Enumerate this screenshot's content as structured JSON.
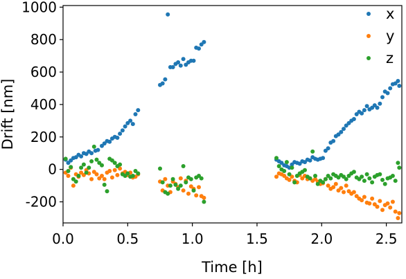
{
  "chart_data": {
    "type": "scatter",
    "xlabel": "Time [h]",
    "ylabel": "Drift [nm]",
    "xlim": [
      0,
      2.62
    ],
    "ylim": [
      -330,
      1010
    ],
    "xticks": [
      0.0,
      0.5,
      1.0,
      1.5,
      2.0,
      2.5
    ],
    "xtick_labels": [
      "0.0",
      "0.5",
      "1.0",
      "1.5",
      "2.0",
      "2.5"
    ],
    "yticks": [
      -200,
      0,
      200,
      400,
      600,
      800,
      1000
    ],
    "ytick_labels": [
      "-200",
      "0",
      "200",
      "400",
      "600",
      "800",
      "1000"
    ],
    "legend_position": "top-right",
    "grid": false,
    "series": [
      {
        "name": "x",
        "color": "#1f77b4",
        "points": [
          [
            0.02,
            60
          ],
          [
            0.04,
            40
          ],
          [
            0.06,
            55
          ],
          [
            0.08,
            70
          ],
          [
            0.1,
            75
          ],
          [
            0.12,
            90
          ],
          [
            0.14,
            80
          ],
          [
            0.16,
            100
          ],
          [
            0.18,
            95
          ],
          [
            0.2,
            110
          ],
          [
            0.22,
            100
          ],
          [
            0.25,
            115
          ],
          [
            0.27,
            120
          ],
          [
            0.3,
            145
          ],
          [
            0.32,
            160
          ],
          [
            0.34,
            175
          ],
          [
            0.36,
            170
          ],
          [
            0.38,
            190
          ],
          [
            0.4,
            200
          ],
          [
            0.42,
            195
          ],
          [
            0.44,
            220
          ],
          [
            0.46,
            240
          ],
          [
            0.48,
            265
          ],
          [
            0.5,
            285
          ],
          [
            0.52,
            300
          ],
          [
            0.54,
            280
          ],
          [
            0.56,
            340
          ],
          [
            0.58,
            365
          ],
          [
            0.75,
            520
          ],
          [
            0.77,
            530
          ],
          [
            0.79,
            555
          ],
          [
            0.81,
            955
          ],
          [
            0.83,
            630
          ],
          [
            0.85,
            630
          ],
          [
            0.87,
            650
          ],
          [
            0.89,
            660
          ],
          [
            0.91,
            640
          ],
          [
            0.93,
            680
          ],
          [
            0.95,
            645
          ],
          [
            0.97,
            660
          ],
          [
            0.99,
            670
          ],
          [
            1.01,
            670
          ],
          [
            1.03,
            750
          ],
          [
            1.05,
            745
          ],
          [
            1.07,
            770
          ],
          [
            1.09,
            785
          ],
          [
            1.65,
            60
          ],
          [
            1.67,
            50
          ],
          [
            1.69,
            40
          ],
          [
            1.71,
            25
          ],
          [
            1.73,
            20
          ],
          [
            1.75,
            10
          ],
          [
            1.77,
            30
          ],
          [
            1.79,
            45
          ],
          [
            1.81,
            40
          ],
          [
            1.83,
            35
          ],
          [
            1.85,
            50
          ],
          [
            1.87,
            45
          ],
          [
            1.89,
            60
          ],
          [
            1.91,
            55
          ],
          [
            1.93,
            75
          ],
          [
            1.95,
            65
          ],
          [
            1.97,
            60
          ],
          [
            1.99,
            65
          ],
          [
            2.01,
            70
          ],
          [
            2.03,
            115
          ],
          [
            2.05,
            130
          ],
          [
            2.07,
            165
          ],
          [
            2.09,
            175
          ],
          [
            2.11,
            205
          ],
          [
            2.13,
            215
          ],
          [
            2.15,
            230
          ],
          [
            2.17,
            250
          ],
          [
            2.19,
            270
          ],
          [
            2.21,
            285
          ],
          [
            2.23,
            300
          ],
          [
            2.25,
            310
          ],
          [
            2.27,
            340
          ],
          [
            2.29,
            355
          ],
          [
            2.31,
            345
          ],
          [
            2.33,
            365
          ],
          [
            2.35,
            390
          ],
          [
            2.37,
            370
          ],
          [
            2.39,
            380
          ],
          [
            2.41,
            395
          ],
          [
            2.43,
            380
          ],
          [
            2.45,
            405
          ],
          [
            2.47,
            445
          ],
          [
            2.49,
            480
          ],
          [
            2.51,
            470
          ],
          [
            2.53,
            500
          ],
          [
            2.55,
            525
          ],
          [
            2.57,
            530
          ],
          [
            2.59,
            545
          ],
          [
            2.6,
            515
          ]
        ]
      },
      {
        "name": "y",
        "color": "#ff7f0e",
        "points": [
          [
            0.02,
            -20
          ],
          [
            0.04,
            -40
          ],
          [
            0.06,
            10
          ],
          [
            0.08,
            -100
          ],
          [
            0.1,
            -30
          ],
          [
            0.12,
            -45
          ],
          [
            0.14,
            -20
          ],
          [
            0.16,
            -35
          ],
          [
            0.18,
            -5
          ],
          [
            0.2,
            -25
          ],
          [
            0.22,
            -60
          ],
          [
            0.24,
            -15
          ],
          [
            0.26,
            -30
          ],
          [
            0.28,
            -55
          ],
          [
            0.3,
            -40
          ],
          [
            0.32,
            -60
          ],
          [
            0.34,
            -20
          ],
          [
            0.36,
            -10
          ],
          [
            0.38,
            -50
          ],
          [
            0.4,
            -5
          ],
          [
            0.42,
            -35
          ],
          [
            0.44,
            5
          ],
          [
            0.46,
            -25
          ],
          [
            0.48,
            -15
          ],
          [
            0.5,
            -35
          ],
          [
            0.52,
            -20
          ],
          [
            0.54,
            -50
          ],
          [
            0.56,
            -45
          ],
          [
            0.58,
            -30
          ],
          [
            0.75,
            -75
          ],
          [
            0.77,
            -130
          ],
          [
            0.79,
            -60
          ],
          [
            0.81,
            -100
          ],
          [
            0.83,
            -140
          ],
          [
            0.85,
            -75
          ],
          [
            0.87,
            -90
          ],
          [
            0.89,
            -110
          ],
          [
            0.91,
            -55
          ],
          [
            0.93,
            -130
          ],
          [
            0.95,
            -70
          ],
          [
            0.97,
            -150
          ],
          [
            0.99,
            -105
          ],
          [
            1.01,
            -120
          ],
          [
            1.03,
            -160
          ],
          [
            1.05,
            -110
          ],
          [
            1.07,
            -165
          ],
          [
            1.09,
            -175
          ],
          [
            1.65,
            -45
          ],
          [
            1.67,
            -25
          ],
          [
            1.69,
            -30
          ],
          [
            1.71,
            -40
          ],
          [
            1.73,
            -55
          ],
          [
            1.75,
            -65
          ],
          [
            1.77,
            -45
          ],
          [
            1.79,
            -70
          ],
          [
            1.81,
            -80
          ],
          [
            1.83,
            -35
          ],
          [
            1.85,
            -55
          ],
          [
            1.87,
            -40
          ],
          [
            1.89,
            -60
          ],
          [
            1.91,
            -55
          ],
          [
            1.93,
            -70
          ],
          [
            1.95,
            -60
          ],
          [
            1.97,
            -75
          ],
          [
            1.99,
            -90
          ],
          [
            2.01,
            -85
          ],
          [
            2.03,
            -60
          ],
          [
            2.05,
            -100
          ],
          [
            2.07,
            -120
          ],
          [
            2.09,
            -110
          ],
          [
            2.11,
            -90
          ],
          [
            2.13,
            -130
          ],
          [
            2.15,
            -115
          ],
          [
            2.17,
            -140
          ],
          [
            2.19,
            -100
          ],
          [
            2.21,
            -135
          ],
          [
            2.23,
            -150
          ],
          [
            2.25,
            -140
          ],
          [
            2.27,
            -165
          ],
          [
            2.29,
            -180
          ],
          [
            2.31,
            -190
          ],
          [
            2.33,
            -170
          ],
          [
            2.35,
            -205
          ],
          [
            2.37,
            -210
          ],
          [
            2.39,
            -180
          ],
          [
            2.41,
            -215
          ],
          [
            2.43,
            -230
          ],
          [
            2.45,
            -195
          ],
          [
            2.47,
            -250
          ],
          [
            2.49,
            -220
          ],
          [
            2.51,
            -210
          ],
          [
            2.53,
            -235
          ],
          [
            2.55,
            -200
          ],
          [
            2.57,
            -260
          ],
          [
            2.59,
            -300
          ],
          [
            2.6,
            -270
          ]
        ]
      },
      {
        "name": "z",
        "color": "#2ca02c",
        "points": [
          [
            0.02,
            65
          ],
          [
            0.04,
            -10
          ],
          [
            0.06,
            15
          ],
          [
            0.08,
            -60
          ],
          [
            0.1,
            -75
          ],
          [
            0.12,
            -40
          ],
          [
            0.14,
            10
          ],
          [
            0.16,
            30
          ],
          [
            0.18,
            -20
          ],
          [
            0.2,
            10
          ],
          [
            0.22,
            50
          ],
          [
            0.24,
            140
          ],
          [
            0.26,
            60
          ],
          [
            0.28,
            40
          ],
          [
            0.3,
            25
          ],
          [
            0.32,
            -95
          ],
          [
            0.34,
            -135
          ],
          [
            0.36,
            65
          ],
          [
            0.38,
            55
          ],
          [
            0.4,
            40
          ],
          [
            0.42,
            20
          ],
          [
            0.44,
            30
          ],
          [
            0.46,
            -30
          ],
          [
            0.48,
            -40
          ],
          [
            0.5,
            -25
          ],
          [
            0.52,
            -45
          ],
          [
            0.54,
            -40
          ],
          [
            0.56,
            -10
          ],
          [
            0.58,
            -25
          ],
          [
            0.75,
            5
          ],
          [
            0.77,
            -80
          ],
          [
            0.79,
            -140
          ],
          [
            0.81,
            -150
          ],
          [
            0.83,
            -100
          ],
          [
            0.85,
            -60
          ],
          [
            0.87,
            -95
          ],
          [
            0.89,
            -120
          ],
          [
            0.91,
            -100
          ],
          [
            0.93,
            20
          ],
          [
            0.95,
            -80
          ],
          [
            0.97,
            -50
          ],
          [
            0.99,
            -60
          ],
          [
            1.01,
            -130
          ],
          [
            1.03,
            -50
          ],
          [
            1.05,
            -40
          ],
          [
            1.07,
            -55
          ],
          [
            1.09,
            -200
          ],
          [
            1.65,
            70
          ],
          [
            1.67,
            20
          ],
          [
            1.69,
            0
          ],
          [
            1.71,
            -10
          ],
          [
            1.73,
            45
          ],
          [
            1.75,
            -30
          ],
          [
            1.77,
            10
          ],
          [
            1.79,
            -80
          ],
          [
            1.81,
            -40
          ],
          [
            1.83,
            -25
          ],
          [
            1.85,
            -15
          ],
          [
            1.87,
            -5
          ],
          [
            1.89,
            -45
          ],
          [
            1.91,
            -55
          ],
          [
            1.93,
            110
          ],
          [
            1.95,
            -40
          ],
          [
            1.97,
            -90
          ],
          [
            1.99,
            -70
          ],
          [
            2.01,
            -80
          ],
          [
            2.03,
            -60
          ],
          [
            2.05,
            -40
          ],
          [
            2.07,
            -55
          ],
          [
            2.09,
            -30
          ],
          [
            2.11,
            -40
          ],
          [
            2.13,
            -50
          ],
          [
            2.15,
            -35
          ],
          [
            2.17,
            -45
          ],
          [
            2.19,
            -60
          ],
          [
            2.21,
            -40
          ],
          [
            2.23,
            -25
          ],
          [
            2.25,
            -15
          ],
          [
            2.27,
            -50
          ],
          [
            2.29,
            -60
          ],
          [
            2.31,
            -45
          ],
          [
            2.33,
            -70
          ],
          [
            2.35,
            -30
          ],
          [
            2.37,
            -55
          ],
          [
            2.39,
            -80
          ],
          [
            2.41,
            -45
          ],
          [
            2.43,
            -35
          ],
          [
            2.45,
            -30
          ],
          [
            2.47,
            -65
          ],
          [
            2.49,
            -90
          ],
          [
            2.51,
            -55
          ],
          [
            2.53,
            -50
          ],
          [
            2.55,
            -40
          ],
          [
            2.57,
            -70
          ],
          [
            2.59,
            40
          ],
          [
            2.6,
            10
          ]
        ]
      }
    ]
  }
}
